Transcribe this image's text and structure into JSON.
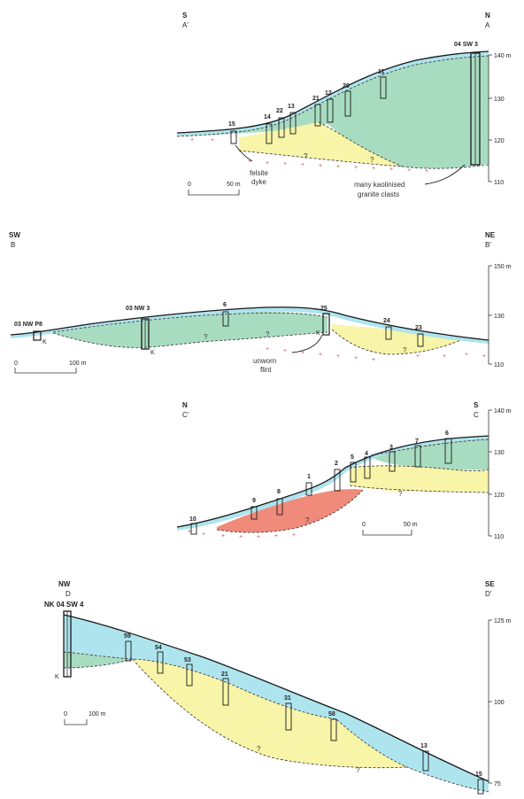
{
  "colors": {
    "green": "#a8dcc0",
    "yellow": "#f8f4a8",
    "blue": "#aee4ee",
    "red": "#f08a7a",
    "line": "#1a1a1a",
    "plus": "#d05050"
  },
  "sectionA": {
    "left_dir": "S",
    "left_label": "A'",
    "right_dir": "N",
    "right_label": "A",
    "scale_min": "0",
    "scale_max": "50 m",
    "ticks": [
      "140 m",
      "130",
      "120",
      "110"
    ],
    "boreholes": [
      "15",
      "14",
      "22",
      "13",
      "21",
      "12",
      "20",
      "11",
      "04 SW 3"
    ],
    "annotations": {
      "felsite_1": "felsite",
      "felsite_2": "dyke",
      "kaolin_1": "many kaolinised",
      "kaolin_2": "granite clasts"
    },
    "q": "?"
  },
  "sectionB": {
    "left_dir": "SW",
    "left_label": "B",
    "right_dir": "NE",
    "right_label": "B'",
    "scale_min": "0",
    "scale_max": "100 m",
    "ticks": [
      "150 m",
      "130",
      "110"
    ],
    "boreholes": [
      "03 NW P8",
      "03 NW 3",
      "6",
      "25",
      "24",
      "23"
    ],
    "k": "K",
    "annotations": {
      "flint_1": "unworn",
      "flint_2": "flint"
    },
    "q": "?"
  },
  "sectionC": {
    "left_dir": "N",
    "left_label": "C'",
    "right_dir": "S",
    "right_label": "C",
    "scale_min": "0",
    "scale_max": "50 m",
    "ticks": [
      "140 m",
      "130",
      "120",
      "110"
    ],
    "boreholes": [
      "10",
      "9",
      "8",
      "1",
      "2",
      "5",
      "4",
      "3",
      "7",
      "6"
    ],
    "q": "?"
  },
  "sectionD": {
    "left_dir": "NW",
    "left_label": "D",
    "right_dir": "SE",
    "right_label": "D'",
    "scale_min": "0",
    "scale_max": "100 m",
    "ticks": [
      "125 m",
      "100",
      "75"
    ],
    "boreholes": [
      "NK 04 SW 4",
      "59",
      "54",
      "53",
      "21",
      "31",
      "58",
      "13",
      "15"
    ],
    "k": "K",
    "q": "?"
  }
}
